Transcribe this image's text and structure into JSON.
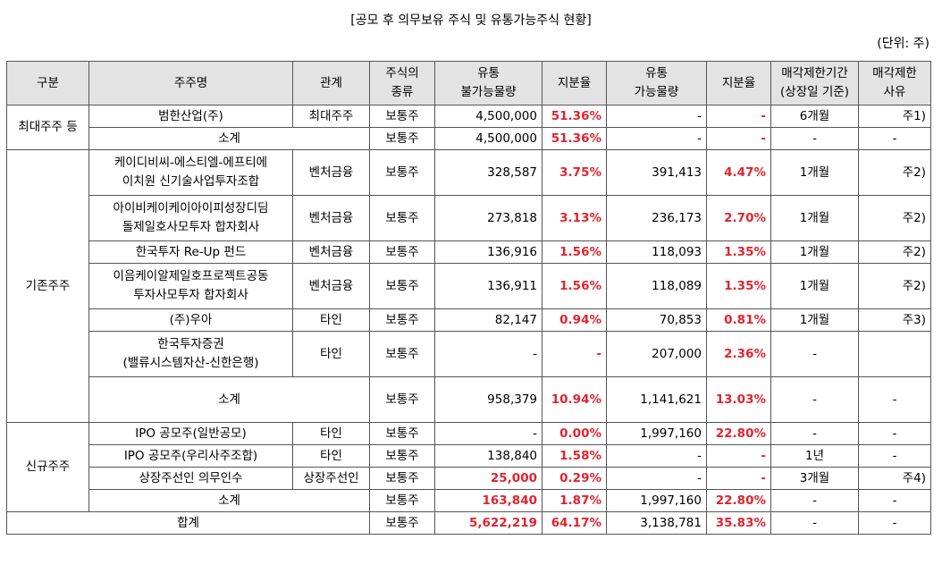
{
  "title": "[공모 후 의무보유 주식 및 유통가능주식 현황]",
  "unit": "(단위: 주)",
  "headers": [
    "구분",
    "주주명",
    "관계",
    "주식의\n종류",
    "유통\n불가능물량",
    "지분율",
    "유통\n가능물량",
    "지분율",
    "매각제한기간\n(상장일 기준)",
    "매각제한\n사유"
  ],
  "groups": [
    "최대주주 등",
    "기존주주",
    "신규주주"
  ],
  "rows": [
    {
      "name": "범한산업(주)",
      "rel": "최대주주",
      "type": "보통주",
      "locked": "4,500,000",
      "lockedPct": "51.36%",
      "free": "-",
      "freePct": "-",
      "period": "6개월",
      "reason": "주1)"
    },
    {
      "name": "소계",
      "rel": "",
      "type": "보통주",
      "locked": "4,500,000",
      "lockedPct": "51.36%",
      "free": "-",
      "freePct": "-",
      "period": "-",
      "reason": "-"
    },
    {
      "name": "케이디비씨-에스티엘-에프티에\n이치원 신기술사업투자조합",
      "rel": "벤처금융",
      "type": "보통주",
      "locked": "328,587",
      "lockedPct": "3.75%",
      "free": "391,413",
      "freePct": "4.47%",
      "period": "1개월",
      "reason": "주2)"
    },
    {
      "name": "아이비케이케이아이피성장디딤\n돌제일호사모투자 합자회사",
      "rel": "벤처금융",
      "type": "보통주",
      "locked": "273,818",
      "lockedPct": "3.13%",
      "free": "236,173",
      "freePct": "2.70%",
      "period": "1개월",
      "reason": "주2)"
    },
    {
      "name": "한국투자 Re-Up 펀드",
      "rel": "벤처금융",
      "type": "보통주",
      "locked": "136,916",
      "lockedPct": "1.56%",
      "free": "118,093",
      "freePct": "1.35%",
      "period": "1개월",
      "reason": "주2)"
    },
    {
      "name": "이음케이알제일호프로젝트공동\n투자사모투자 합자회사",
      "rel": "벤처금융",
      "type": "보통주",
      "locked": "136,911",
      "lockedPct": "1.56%",
      "free": "118,089",
      "freePct": "1.35%",
      "period": "1개월",
      "reason": "주2)"
    },
    {
      "name": "(주)우아",
      "rel": "타인",
      "type": "보통주",
      "locked": "82,147",
      "lockedPct": "0.94%",
      "free": "70,853",
      "freePct": "0.81%",
      "period": "1개월",
      "reason": "주3)"
    },
    {
      "name": "한국투자증권\n(밸류시스템자산-신한은행)",
      "rel": "타인",
      "type": "보통주",
      "locked": "-",
      "lockedPct": "-",
      "free": "207,000",
      "freePct": "2.36%",
      "period": "-",
      "reason": ""
    },
    {
      "name": "소계",
      "rel": "",
      "type": "보통주",
      "locked": "958,379",
      "lockedPct": "10.94%",
      "free": "1,141,621",
      "freePct": "13.03%",
      "period": "-",
      "reason": "-"
    },
    {
      "name": "IPO 공모주(일반공모)",
      "rel": "타인",
      "type": "보통주",
      "locked": "-",
      "lockedPct": "0.00%",
      "free": "1,997,160",
      "freePct": "22.80%",
      "period": "-",
      "reason": "-"
    },
    {
      "name": "IPO 공모주(우리사주조합)",
      "rel": "타인",
      "type": "보통주",
      "locked": "138,840",
      "lockedPct": "1.58%",
      "free": "-",
      "freePct": "-",
      "period": "1년",
      "reason": "-"
    },
    {
      "name": "상장주선인 의무인수",
      "rel": "상장주선인",
      "type": "보통주",
      "locked": "25,000",
      "lockedPct": "0.29%",
      "free": "-",
      "freePct": "-",
      "period": "3개월",
      "reason": "주4)"
    },
    {
      "name": "소계",
      "rel": "",
      "type": "보통주",
      "locked": "163,840",
      "lockedPct": "1.87%",
      "free": "1,997,160",
      "freePct": "22.80%",
      "period": "-",
      "reason": "-"
    }
  ],
  "total": {
    "label": "합계",
    "type": "보통주",
    "locked": "5,622,219",
    "lockedPct": "64.17%",
    "free": "3,138,781",
    "freePct": "35.83%",
    "period": "-",
    "reason": "-"
  }
}
